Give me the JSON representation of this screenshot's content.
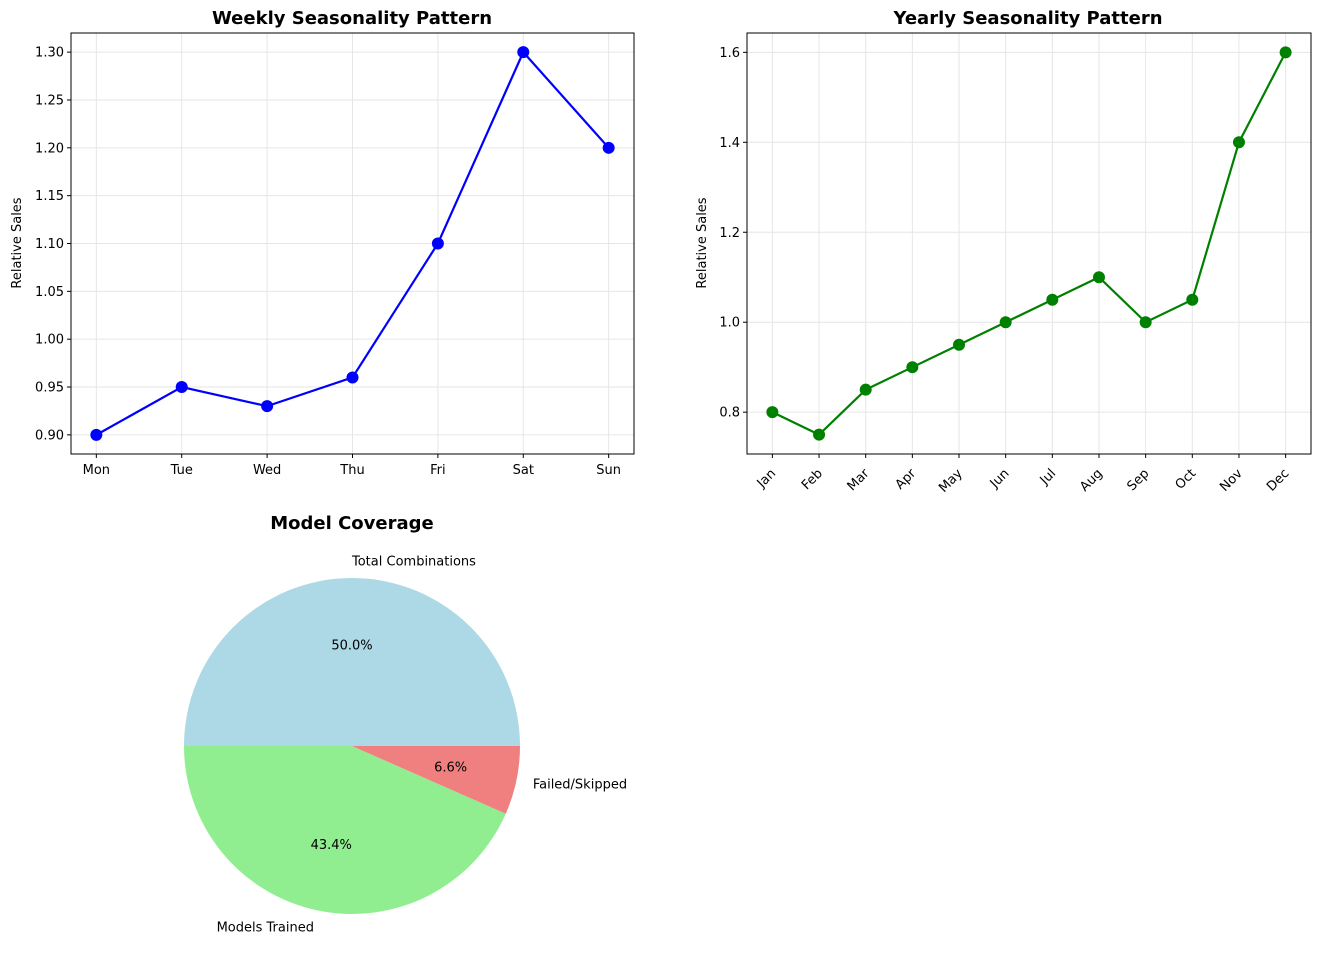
{
  "chart_data": [
    {
      "type": "line",
      "title": "Weekly Seasonality Pattern",
      "xlabel": "",
      "ylabel": "Relative Sales",
      "categories": [
        "Mon",
        "Tue",
        "Wed",
        "Thu",
        "Fri",
        "Sat",
        "Sun"
      ],
      "values": [
        0.9,
        0.95,
        0.93,
        0.96,
        1.1,
        1.3,
        1.2
      ],
      "ylim": [
        0.88,
        1.32
      ],
      "yticks": [
        "0.90",
        "0.95",
        "1.00",
        "1.05",
        "1.10",
        "1.15",
        "1.20",
        "1.25",
        "1.30"
      ],
      "color": "#0000ff",
      "marker": "circle",
      "grid": true
    },
    {
      "type": "line",
      "title": "Yearly Seasonality Pattern",
      "xlabel": "",
      "ylabel": "Relative Sales",
      "categories": [
        "Jan",
        "Feb",
        "Mar",
        "Apr",
        "May",
        "Jun",
        "Jul",
        "Aug",
        "Sep",
        "Oct",
        "Nov",
        "Dec"
      ],
      "values": [
        0.8,
        0.75,
        0.85,
        0.9,
        0.95,
        1.0,
        1.05,
        1.1,
        1.0,
        1.05,
        1.4,
        1.6
      ],
      "ylim": [
        0.707,
        1.643
      ],
      "yticks": [
        "0.8",
        "1.0",
        "1.2",
        "1.4",
        "1.6"
      ],
      "xtick_rotation": 45,
      "color": "#008000",
      "marker": "circle",
      "grid": true
    },
    {
      "type": "pie",
      "title": "Model Coverage",
      "labels": [
        "Total Combinations",
        "Models Trained",
        "Failed/Skipped"
      ],
      "percent_labels": [
        "50.0%",
        "43.4%",
        "6.6%"
      ],
      "values": [
        50.0,
        43.4,
        6.6
      ],
      "colors": [
        "#add8e6",
        "#90ee90",
        "#f08080"
      ]
    }
  ]
}
